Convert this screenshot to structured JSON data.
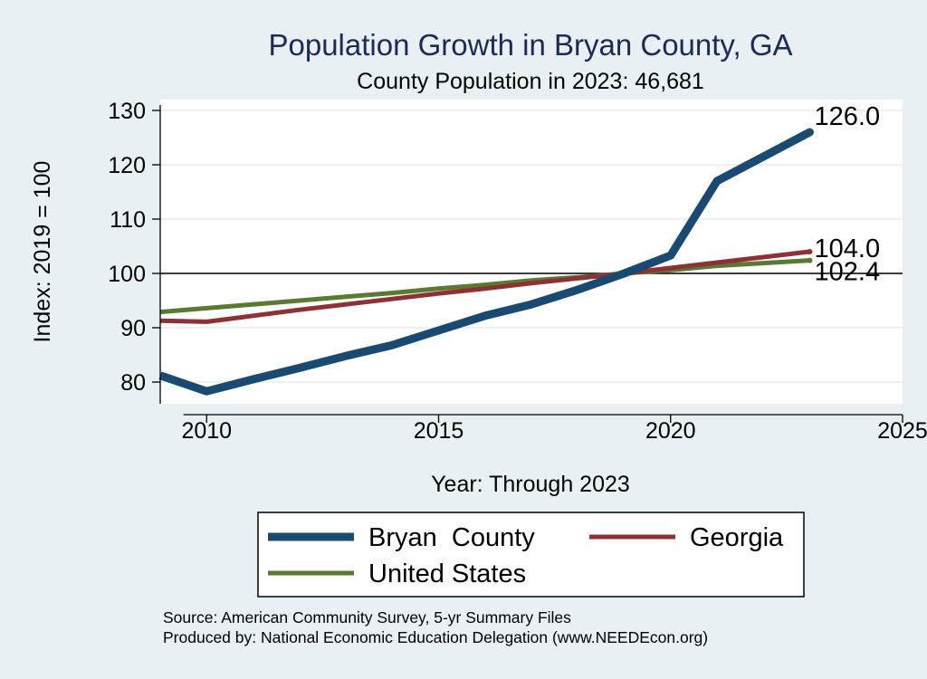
{
  "chart_data": {
    "type": "line",
    "title": "Population Growth in Bryan County, GA",
    "subtitle": "County Population in 2023: 46,681",
    "xlabel": "Year: Through 2023",
    "ylabel": "Index: 2019 = 100",
    "xlim": [
      2009,
      2025
    ],
    "ylim": [
      76,
      132
    ],
    "x_ticks": [
      2010,
      2015,
      2020,
      2025
    ],
    "y_ticks": [
      80,
      90,
      100,
      110,
      120,
      130
    ],
    "grid": true,
    "reference_line": 100,
    "legend_position": "bottom",
    "colors": {
      "background": "#e9f0f3",
      "plot_background": "#ffffff",
      "title": "#1a2b55",
      "grid": "#e4edf0"
    },
    "series": [
      {
        "name": "Bryan  County",
        "color": "#1a4a72",
        "width": 9,
        "x": [
          2009,
          2010,
          2011,
          2012,
          2013,
          2014,
          2015,
          2016,
          2017,
          2018,
          2019,
          2020,
          2021,
          2022,
          2023
        ],
        "values": [
          81.2,
          78.3,
          80.5,
          82.6,
          84.8,
          86.8,
          89.5,
          92.2,
          94.3,
          97.0,
          100.0,
          103.3,
          117.0,
          121.5,
          126.0
        ],
        "end_label": "126.0"
      },
      {
        "name": "Georgia",
        "color": "#8f3034",
        "width": 5,
        "x": [
          2009,
          2010,
          2011,
          2012,
          2013,
          2014,
          2015,
          2016,
          2017,
          2018,
          2019,
          2020,
          2021,
          2022,
          2023
        ],
        "values": [
          91.3,
          91.1,
          92.2,
          93.3,
          94.3,
          95.3,
          96.3,
          97.2,
          98.2,
          99.1,
          100.0,
          101.0,
          102.0,
          103.0,
          104.0
        ],
        "end_label": "104.0"
      },
      {
        "name": "United States",
        "color": "#5a7a32",
        "width": 5,
        "x": [
          2009,
          2010,
          2011,
          2012,
          2013,
          2014,
          2015,
          2016,
          2017,
          2018,
          2019,
          2020,
          2021,
          2022,
          2023
        ],
        "values": [
          92.9,
          93.6,
          94.3,
          95.0,
          95.7,
          96.4,
          97.2,
          97.9,
          98.7,
          99.3,
          100.0,
          100.6,
          101.4,
          101.9,
          102.4
        ],
        "end_label": "102.4"
      }
    ]
  },
  "footer": {
    "source": "Source: American Community Survey, 5-yr Summary Files",
    "produced_by": "Produced by: National Economic Education Delegation (www.NEEDEcon.org)"
  }
}
